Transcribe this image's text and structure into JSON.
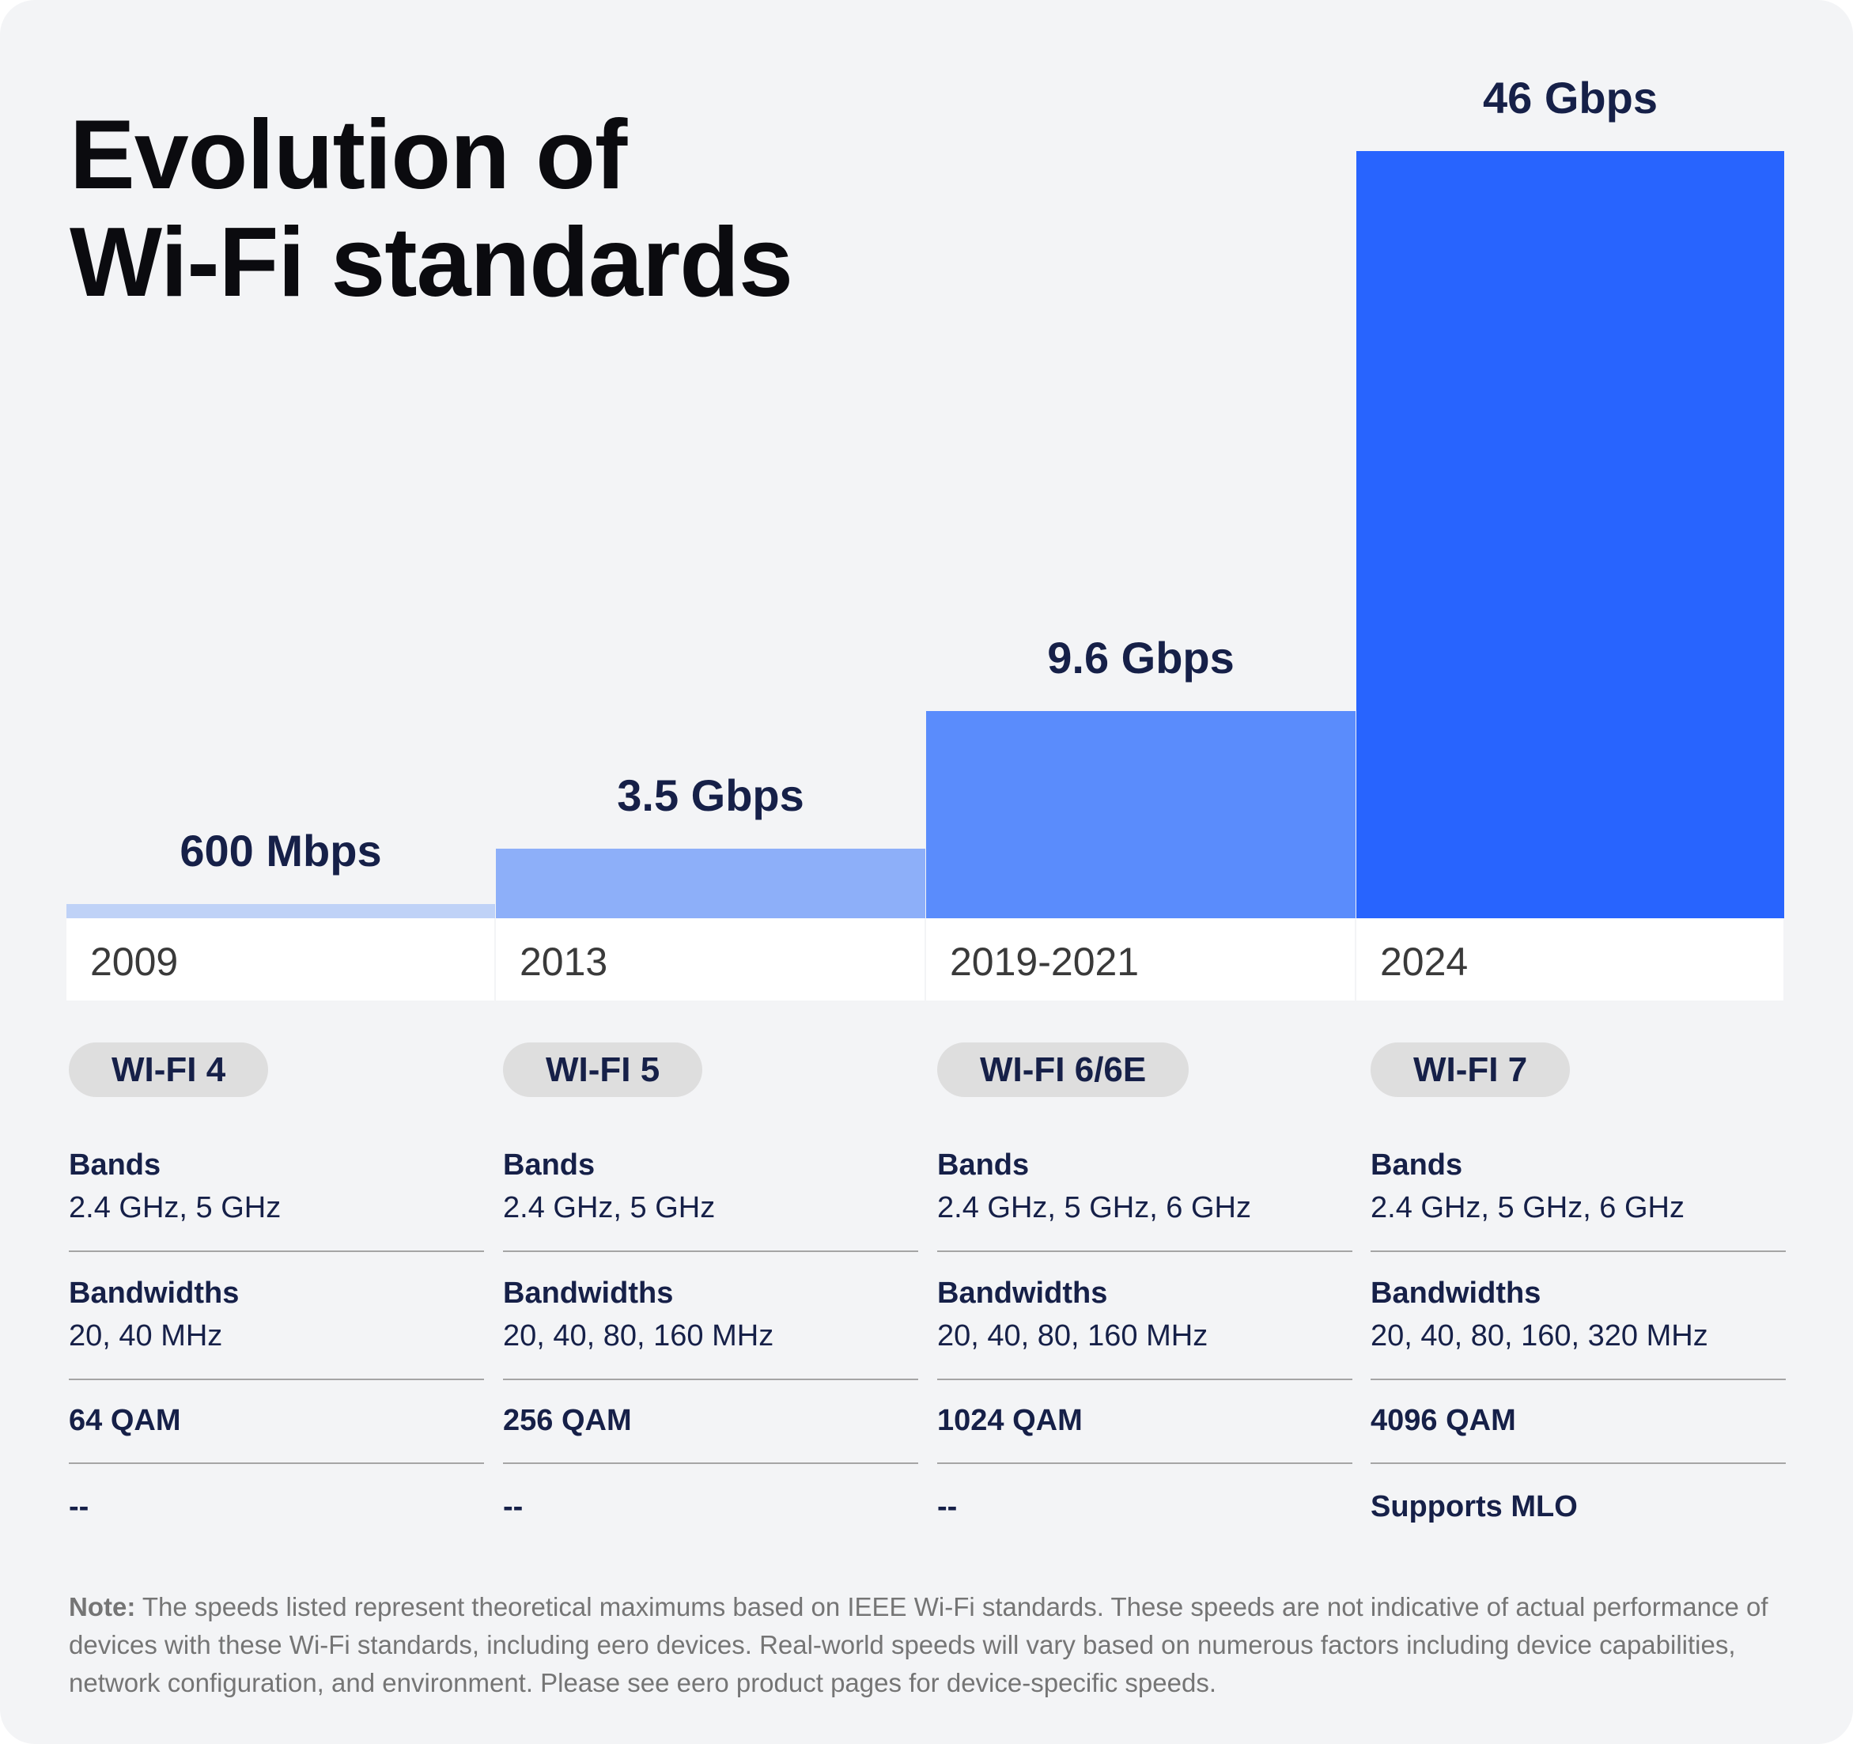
{
  "chart_data": {
    "type": "bar",
    "title": "Evolution of Wi-Fi standards",
    "categories": [
      "2009",
      "2013",
      "2019-2021",
      "2024"
    ],
    "values_mbps": [
      600,
      3500,
      9600,
      46000
    ],
    "data_labels": [
      "600 Mbps",
      "3.5 Gbps",
      "9.6 Gbps",
      "46 Gbps"
    ],
    "colors": [
      "#bfd2f7",
      "#8daff9",
      "#5a8cfc",
      "#2864fe"
    ],
    "grid": false
  },
  "title_line1": "Evolution of",
  "title_line2": "Wi-Fi standards",
  "columns": [
    {
      "name": "WI-FI 4",
      "bands_label": "Bands",
      "bands": "2.4 GHz, 5 GHz",
      "bw_label": "Bandwidths",
      "bandwidths": "20, 40 MHz",
      "qam": "64 QAM",
      "mlo": "--"
    },
    {
      "name": "WI-FI 5",
      "bands_label": "Bands",
      "bands": "2.4 GHz, 5 GHz",
      "bw_label": "Bandwidths",
      "bandwidths": "20, 40, 80, 160 MHz",
      "qam": "256 QAM",
      "mlo": "--"
    },
    {
      "name": "WI-FI 6/6E",
      "bands_label": "Bands",
      "bands": "2.4 GHz, 5 GHz, 6 GHz",
      "bw_label": "Bandwidths",
      "bandwidths": "20, 40, 80, 160 MHz",
      "qam": "1024 QAM",
      "mlo": "--"
    },
    {
      "name": "WI-FI 7",
      "bands_label": "Bands",
      "bands": "2.4 GHz, 5 GHz, 6 GHz",
      "bw_label": "Bandwidths",
      "bandwidths": "20, 40, 80, 160, 320 MHz",
      "qam": "4096 QAM",
      "mlo": "Supports MLO"
    }
  ],
  "note": {
    "label": "Note:",
    "text": " The speeds listed represent theoretical maximums based on IEEE Wi-Fi standards. These speeds are not indicative of actual performance of devices with these Wi-Fi standards, including eero devices. Real-world speeds will vary based on numerous factors including device capabilities, network configuration, and environment. Please see eero product pages for device-specific speeds."
  }
}
